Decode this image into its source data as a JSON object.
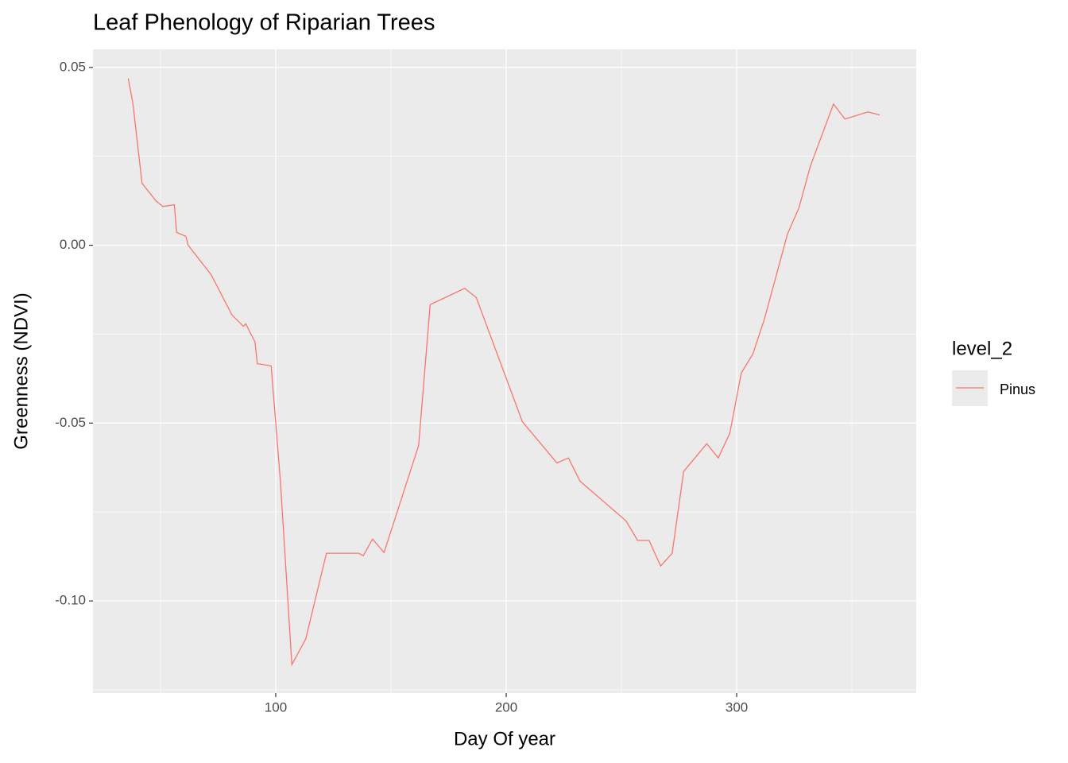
{
  "chart_data": {
    "type": "line",
    "title": "Leaf Phenology of Riparian Trees",
    "x_label": "Day Of year",
    "y_label": "Greenness (NDVI)",
    "legend_title": "level_2",
    "legend_position": "right",
    "grid": true,
    "xlim": [
      20.7,
      377.9
    ],
    "ylim": [
      -0.1259,
      0.0551
    ],
    "xticks": [
      100,
      200,
      300
    ],
    "yticks": [
      0.05,
      {
        "value": 0,
        "label": "0.00"
      },
      -0.05,
      {
        "value": -0.1,
        "label": "-0.10"
      }
    ],
    "x_minor_breaks": [
      50,
      150,
      250,
      350
    ],
    "y_minor_breaks": [
      0.025,
      -0.025,
      -0.075,
      -0.125
    ],
    "x": [
      36,
      38,
      42,
      48,
      51,
      56,
      57,
      61,
      62,
      72,
      81,
      86,
      87,
      91,
      92,
      98,
      102,
      107,
      113,
      122,
      136,
      138,
      142,
      147,
      162,
      167,
      182,
      187,
      207,
      222,
      227,
      232,
      252,
      257,
      262,
      267,
      272,
      277,
      287,
      292,
      297,
      302,
      307,
      312,
      317,
      322,
      327,
      332,
      342,
      347,
      357,
      362
    ],
    "series": [
      {
        "name": "Pinus",
        "color": "#F8766D",
        "values": [
          0.0469,
          0.04,
          0.0174,
          0.0125,
          0.0109,
          0.0114,
          0.0036,
          0.0025,
          0.0,
          -0.0083,
          -0.0196,
          -0.0228,
          -0.0221,
          -0.0272,
          -0.0333,
          -0.0339,
          -0.0661,
          -0.1179,
          -0.1107,
          -0.0866,
          -0.0866,
          -0.0873,
          -0.0826,
          -0.0864,
          -0.0563,
          -0.0167,
          -0.0121,
          -0.0147,
          -0.0496,
          -0.0612,
          -0.0598,
          -0.0663,
          -0.0775,
          -0.083,
          -0.083,
          -0.0902,
          -0.0866,
          -0.0636,
          -0.0558,
          -0.0598,
          -0.0529,
          -0.0359,
          -0.0306,
          -0.0208,
          -0.0089,
          0.0031,
          0.0105,
          0.0223,
          0.0397,
          0.0355,
          0.0375,
          0.0366
        ]
      }
    ]
  }
}
